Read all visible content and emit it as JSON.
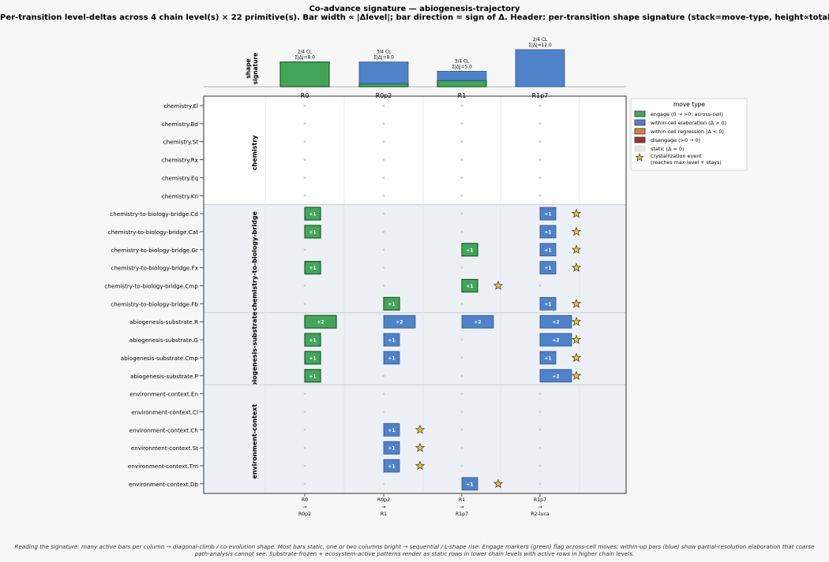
{
  "title": "Co-advance signature — abiogenesis-trajectory",
  "subtitle": "Per-transition level-deltas across 4 chain level(s) × 22 primitive(s).  Bar width ∝ |Δlevel|; bar direction = sign of Δ.  Header: per-transition shape signature (stack=move-type, height∝total |Δ|).",
  "footer_lines": [
    "Reading the signature: many active bars per column → diagonal-climb / co-evolution shape.  Most bars static, one or two columns bright → sequential / L-shape rise.  Engage markers (green) flag across-cell moves; within-up bars (blue) show partial-resolution elaboration that coarse",
    "path-analysis cannot see.  Substrate-frozen + ecosystem-active patterns render as static rows in lower chain levels with active rows in higher chain levels."
  ],
  "colors": {
    "engage": "#44a55a",
    "engage_edge": "#1a5c2a",
    "within_up": "#4f82c8",
    "within_up_edge": "#2b5490",
    "within_down": "#d9823e",
    "disengage": "#a33030",
    "static": "#e6e6e6",
    "star": "#f2c12e",
    "band": "#edf1f5"
  },
  "chart_data": {
    "type": "heatmap",
    "header": {
      "ylabel": "shape\nsignature",
      "columns": [
        {
          "label": "R0",
          "annotation": "2/4 CL\nΣ|Δ|=8.0",
          "total": 8,
          "engage": 8,
          "within_up": 0
        },
        {
          "label": "R0p2",
          "annotation": "3/4 CL\nΣ|Δ|=8.0",
          "total": 8,
          "engage": 1,
          "within_up": 7
        },
        {
          "label": "R1",
          "annotation": "3/4 CL\nΣ|Δ|=5.0",
          "total": 5,
          "engage": 2,
          "within_up": 3
        },
        {
          "label": "R1p7",
          "annotation": "2/4 CL\nΣ|Δ|=12.0",
          "total": 12,
          "engage": 0,
          "within_up": 12
        }
      ]
    },
    "x_ticks": [
      "R0\n→\nR0p2",
      "R0p2\n→\nR1",
      "R1\n→\nR1p7",
      "R1p7\n→\nR2-luca"
    ],
    "groups": [
      {
        "name": "chemistry",
        "rows": [
          {
            "label": "chemistry.El",
            "deltas": [
              0,
              0,
              0,
              0
            ],
            "types": [
              "s",
              "s",
              "s",
              "s"
            ],
            "star": null
          },
          {
            "label": "chemistry.Bd",
            "deltas": [
              0,
              0,
              0,
              0
            ],
            "types": [
              "s",
              "s",
              "s",
              "s"
            ],
            "star": null
          },
          {
            "label": "chemistry.St",
            "deltas": [
              0,
              0,
              0,
              0
            ],
            "types": [
              "s",
              "s",
              "s",
              "s"
            ],
            "star": null
          },
          {
            "label": "chemistry.Rx",
            "deltas": [
              0,
              0,
              0,
              0
            ],
            "types": [
              "s",
              "s",
              "s",
              "s"
            ],
            "star": null
          },
          {
            "label": "chemistry.Eq",
            "deltas": [
              0,
              0,
              0,
              0
            ],
            "types": [
              "s",
              "s",
              "s",
              "s"
            ],
            "star": null
          },
          {
            "label": "chemistry.Kn",
            "deltas": [
              0,
              0,
              0,
              0
            ],
            "types": [
              "s",
              "s",
              "s",
              "s"
            ],
            "star": null
          }
        ]
      },
      {
        "name": "chemistry-to-biology-bridge",
        "rows": [
          {
            "label": "chemistry-to-biology-bridge.Cd",
            "deltas": [
              1,
              0,
              0,
              1
            ],
            "types": [
              "e",
              "s",
              "s",
              "w"
            ],
            "star": 3
          },
          {
            "label": "chemistry-to-biology-bridge.Cat",
            "deltas": [
              1,
              0,
              0,
              1
            ],
            "types": [
              "e",
              "s",
              "s",
              "w"
            ],
            "star": 3
          },
          {
            "label": "chemistry-to-biology-bridge.Gr",
            "deltas": [
              0,
              0,
              1,
              1
            ],
            "types": [
              "s",
              "s",
              "e",
              "w"
            ],
            "star": 3
          },
          {
            "label": "chemistry-to-biology-bridge.Fx",
            "deltas": [
              1,
              0,
              0,
              1
            ],
            "types": [
              "e",
              "s",
              "s",
              "w"
            ],
            "star": 3
          },
          {
            "label": "chemistry-to-biology-bridge.Cmp",
            "deltas": [
              0,
              0,
              1,
              0
            ],
            "types": [
              "s",
              "s",
              "e",
              "s"
            ],
            "star": 2
          },
          {
            "label": "chemistry-to-biology-bridge.Fb",
            "deltas": [
              0,
              1,
              0,
              1
            ],
            "types": [
              "s",
              "e",
              "s",
              "w"
            ],
            "star": 3
          }
        ]
      },
      {
        "name": "abiogenesis-substrate",
        "rows": [
          {
            "label": "abiogenesis-substrate.R",
            "deltas": [
              2,
              2,
              2,
              2
            ],
            "types": [
              "e",
              "w",
              "w",
              "w"
            ],
            "star": 3
          },
          {
            "label": "abiogenesis-substrate.G",
            "deltas": [
              1,
              1,
              0,
              2
            ],
            "types": [
              "e",
              "w",
              "s",
              "w"
            ],
            "star": 3
          },
          {
            "label": "abiogenesis-substrate.Cmp",
            "deltas": [
              1,
              1,
              0,
              1
            ],
            "types": [
              "e",
              "w",
              "s",
              "w"
            ],
            "star": 3
          },
          {
            "label": "abiogenesis-substrate.P",
            "deltas": [
              1,
              0,
              0,
              2
            ],
            "types": [
              "e",
              "s",
              "s",
              "w"
            ],
            "star": 3
          }
        ]
      },
      {
        "name": "environment-context",
        "rows": [
          {
            "label": "environment-context.En",
            "deltas": [
              0,
              0,
              0,
              0
            ],
            "types": [
              "s",
              "s",
              "s",
              "s"
            ],
            "star": null
          },
          {
            "label": "environment-context.Cl",
            "deltas": [
              0,
              0,
              0,
              0
            ],
            "types": [
              "s",
              "s",
              "s",
              "s"
            ],
            "star": null
          },
          {
            "label": "environment-context.Ch",
            "deltas": [
              0,
              1,
              0,
              0
            ],
            "types": [
              "s",
              "w",
              "s",
              "s"
            ],
            "star": 1
          },
          {
            "label": "environment-context.St",
            "deltas": [
              0,
              1,
              0,
              0
            ],
            "types": [
              "s",
              "w",
              "s",
              "s"
            ],
            "star": 1
          },
          {
            "label": "environment-context.Tm",
            "deltas": [
              0,
              1,
              0,
              0
            ],
            "types": [
              "s",
              "w",
              "s",
              "s"
            ],
            "star": 1
          },
          {
            "label": "environment-context.Db",
            "deltas": [
              0,
              0,
              1,
              0
            ],
            "types": [
              "s",
              "s",
              "w",
              "s"
            ],
            "star": 2
          }
        ]
      }
    ],
    "legend": {
      "title": "move type",
      "placement": "upper-right outside",
      "entries": [
        {
          "key": "engage",
          "label": "engage  (0 → >0; across-cell)"
        },
        {
          "key": "within_up",
          "label": "within-cell elaboration  (Δ > 0)"
        },
        {
          "key": "within_down",
          "label": "within-cell regression  (Δ < 0)"
        },
        {
          "key": "disengage",
          "label": "disengage  (>0 → 0)"
        },
        {
          "key": "static",
          "label": "static  (Δ = 0)"
        },
        {
          "key": "star",
          "label": "crystallization event\n(reaches max-level + stays)"
        }
      ]
    },
    "grid": true
  }
}
